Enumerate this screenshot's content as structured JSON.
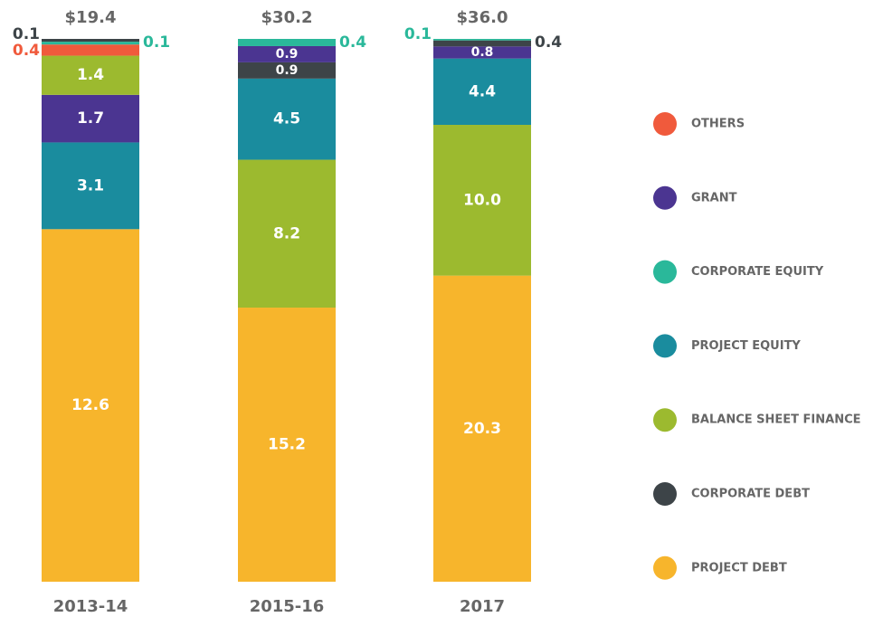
{
  "chart_data": {
    "type": "stacked_bar",
    "categories": [
      "2013-14",
      "2015-16",
      "2017"
    ],
    "totals": [
      19.4,
      30.2,
      36.0
    ],
    "total_labels": [
      "$19.4",
      "$30.2",
      "$36.0"
    ],
    "series": [
      {
        "name": "OTHERS",
        "color": "#f05a3c",
        "values": [
          0.4,
          null,
          null
        ]
      },
      {
        "name": "GRANT",
        "color": "#4b3591",
        "values": [
          1.7,
          0.9,
          0.8
        ]
      },
      {
        "name": "CORPORATE EQUITY",
        "color": "#2ab89a",
        "values": [
          0.1,
          0.4,
          0.1
        ]
      },
      {
        "name": "PROJECT EQUITY",
        "color": "#1a8c9e",
        "values": [
          3.1,
          4.5,
          4.4
        ]
      },
      {
        "name": "BALANCE SHEET FINANCE",
        "color": "#9cba2f",
        "values": [
          1.4,
          8.2,
          10.0
        ],
        "value_labels": [
          "1.4",
          "8.2",
          "10.0"
        ]
      },
      {
        "name": "CORPORATE DEBT",
        "color": "#3d4448",
        "values": [
          0.1,
          0.9,
          0.4
        ]
      },
      {
        "name": "PROJECT DEBT",
        "color": "#f7b52c",
        "values": [
          12.6,
          15.2,
          20.3
        ]
      }
    ]
  }
}
